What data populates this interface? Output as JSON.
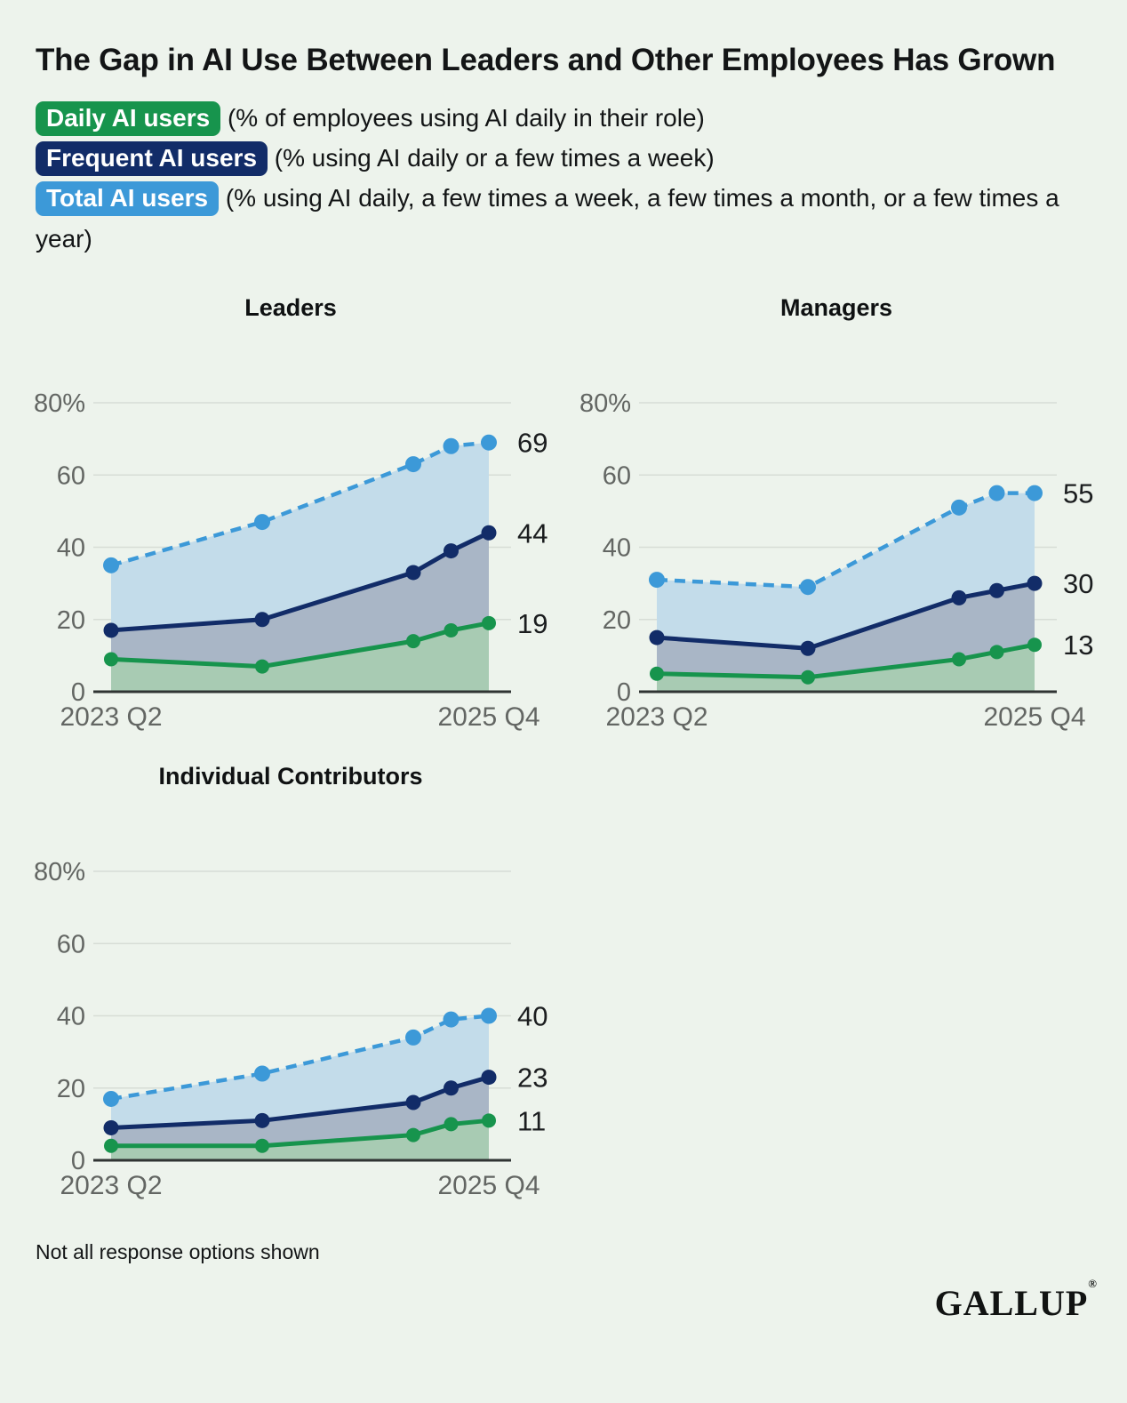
{
  "header": {
    "title": "The Gap in AI Use Between Leaders and Other Employees Has Grown"
  },
  "legend": {
    "items": [
      {
        "key": "daily",
        "label": "Daily AI users",
        "description": "(% of employees using AI daily in their role)"
      },
      {
        "key": "frequent",
        "label": "Frequent AI users",
        "description": "(% using AI daily or a few times a week)"
      },
      {
        "key": "total",
        "label": "Total AI users",
        "description": "(% using AI daily, a few times a week, a few times a month, or a few times a year)"
      }
    ]
  },
  "colors": {
    "daily_green": "#17944d",
    "frequent_navy": "#122c68",
    "total_blue": "#3c99d8",
    "daily_fill": "#a8cbb3",
    "frequent_fill": "#a9b6c6",
    "total_fill": "#c3dcea",
    "background": "#edf3ec",
    "gridline": "#d7ddd6",
    "axis": "#303433",
    "tick_text": "#636663",
    "value_text": "#1b1d1f"
  },
  "chart_data": [
    {
      "type": "area",
      "title": "Leaders",
      "x_offsets_quarters": [
        0,
        4,
        8,
        9,
        10
      ],
      "x_tick_labels": [
        "2023 Q2",
        "2025 Q4"
      ],
      "ylim": [
        0,
        80
      ],
      "yticks": [
        0,
        20,
        40,
        60,
        80
      ],
      "ytick_labels": [
        "0",
        "20",
        "40",
        "60",
        "80%"
      ],
      "grid": true,
      "legend_position": "none",
      "series": [
        {
          "key": "total",
          "name": "Total AI users",
          "values": [
            35,
            47,
            63,
            68,
            69
          ],
          "end_label": "69"
        },
        {
          "key": "frequent",
          "name": "Frequent AI users",
          "values": [
            17,
            20,
            33,
            39,
            44
          ],
          "end_label": "44"
        },
        {
          "key": "daily",
          "name": "Daily AI users",
          "values": [
            9,
            7,
            14,
            17,
            19
          ],
          "end_label": "19"
        }
      ]
    },
    {
      "type": "area",
      "title": "Managers",
      "x_offsets_quarters": [
        0,
        4,
        8,
        9,
        10
      ],
      "x_tick_labels": [
        "2023 Q2",
        "2025 Q4"
      ],
      "ylim": [
        0,
        80
      ],
      "yticks": [
        0,
        20,
        40,
        60,
        80
      ],
      "ytick_labels": [
        "0",
        "20",
        "40",
        "60",
        "80%"
      ],
      "grid": true,
      "legend_position": "none",
      "series": [
        {
          "key": "total",
          "name": "Total AI users",
          "values": [
            31,
            29,
            51,
            55,
            55
          ],
          "end_label": "55"
        },
        {
          "key": "frequent",
          "name": "Frequent AI users",
          "values": [
            15,
            12,
            26,
            28,
            30
          ],
          "end_label": "30"
        },
        {
          "key": "daily",
          "name": "Daily AI users",
          "values": [
            5,
            4,
            9,
            11,
            13
          ],
          "end_label": "13"
        }
      ]
    },
    {
      "type": "area",
      "title": "Individual Contributors",
      "x_offsets_quarters": [
        0,
        4,
        8,
        9,
        10
      ],
      "x_tick_labels": [
        "2023 Q2",
        "2025 Q4"
      ],
      "ylim": [
        0,
        80
      ],
      "yticks": [
        0,
        20,
        40,
        60,
        80
      ],
      "ytick_labels": [
        "0",
        "20",
        "40",
        "60",
        "80%"
      ],
      "grid": true,
      "legend_position": "none",
      "series": [
        {
          "key": "total",
          "name": "Total AI users",
          "values": [
            17,
            24,
            34,
            39,
            40
          ],
          "end_label": "40"
        },
        {
          "key": "frequent",
          "name": "Frequent AI users",
          "values": [
            9,
            11,
            16,
            20,
            23
          ],
          "end_label": "23"
        },
        {
          "key": "daily",
          "name": "Daily AI users",
          "values": [
            4,
            4,
            7,
            10,
            11
          ],
          "end_label": "11"
        }
      ]
    }
  ],
  "footer": {
    "note": "Not all response options shown",
    "logo": "GALLUP",
    "logo_mark": "®"
  }
}
